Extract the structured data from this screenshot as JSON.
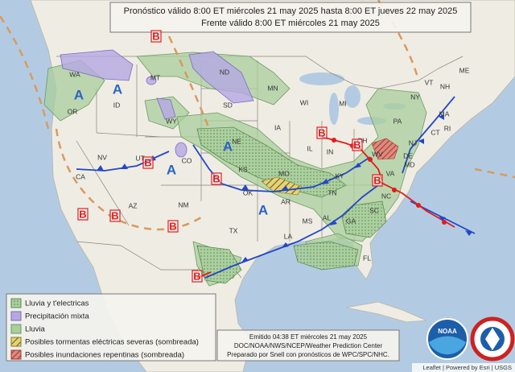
{
  "header": {
    "lines": [
      "Pronóstico válido 8:00 ET miércoles 21 may 2025 hasta 8:00 ET jueves 22 may 2025",
      "Frente válido 8:00 ET miércoles 21 may 2025"
    ]
  },
  "legend": {
    "items": [
      "Lluvia y t'electricas",
      "Precipitación mixta",
      "Lluvia",
      "Posibles tormentas eléctricas severas (sombreada)",
      "Posibles inundaciones repentinas (sombreada)"
    ]
  },
  "footer": {
    "lines": [
      "Emitido 04:38 ET miércoles 21 may 2025",
      "DOC/NOAA/NWS/NCEP/Weather Prediction Center",
      "Preparado por Snell con pronósticos de WPC/SPC/NHC."
    ]
  },
  "state_labels": [
    "WA",
    "OR",
    "ID",
    "MT",
    "WY",
    "ND",
    "SD",
    "MN",
    "WI",
    "MI",
    "NV",
    "UT",
    "CO",
    "NE",
    "IA",
    "IL",
    "IN",
    "OH",
    "PA",
    "NY",
    "CA",
    "AZ",
    "NM",
    "KS",
    "MO",
    "KY",
    "WV",
    "VA",
    "TN",
    "NC",
    "AR",
    "OK",
    "TX",
    "LA",
    "MS",
    "AL",
    "GA",
    "SC",
    "FL",
    "VT",
    "NH",
    "ME",
    "MA",
    "CT",
    "RI",
    "NJ",
    "DE",
    "MD"
  ],
  "highs": [
    "A",
    "A",
    "A",
    "A",
    "A"
  ],
  "lows": [
    "B",
    "B",
    "B",
    "B",
    "B",
    "B",
    "B",
    "B",
    "B",
    "B"
  ],
  "logo": "NOAA",
  "attribution": "Leaflet | Powered by Esri | USGS"
}
